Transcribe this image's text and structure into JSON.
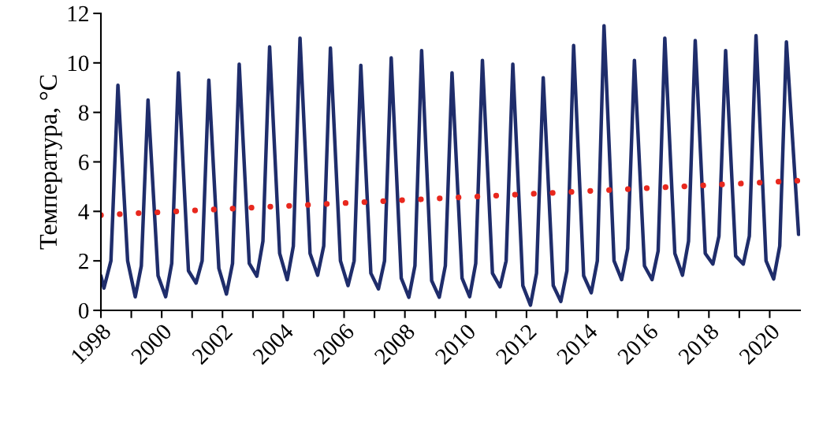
{
  "chart_data": {
    "type": "line",
    "ylabel": "Температура, °C",
    "xlim": [
      1998,
      2021
    ],
    "ylim": [
      0,
      12
    ],
    "xticks": [
      1998,
      {
        "value": 1999,
        "label": null
      },
      2000,
      {
        "value": 2001,
        "label": null
      },
      2002,
      {
        "value": 2003,
        "label": null
      },
      2004,
      {
        "value": 2005,
        "label": null
      },
      2006,
      {
        "value": 2007,
        "label": null
      },
      2008,
      {
        "value": 2009,
        "label": null
      },
      2010,
      {
        "value": 2011,
        "label": null
      },
      2012,
      {
        "value": 2013,
        "label": null
      },
      2014,
      {
        "value": 2015,
        "label": null
      },
      2016,
      {
        "value": 2017,
        "label": null
      },
      2018,
      {
        "value": 2019,
        "label": null
      },
      2020
    ],
    "yticks": [
      0,
      2,
      4,
      6,
      8,
      10,
      12
    ],
    "series": [
      {
        "color": "#1f2d6b",
        "line_style": "solid",
        "x": [
          1998.0,
          1998.1,
          1998.33,
          1998.56,
          1998.88,
          1999.13,
          1999.33,
          1999.55,
          1999.88,
          2000.13,
          2000.33,
          2000.55,
          2000.88,
          2001.13,
          2001.33,
          2001.55,
          2001.88,
          2002.13,
          2002.33,
          2002.55,
          2002.88,
          2003.13,
          2003.33,
          2003.55,
          2003.88,
          2004.13,
          2004.33,
          2004.55,
          2004.88,
          2005.13,
          2005.33,
          2005.55,
          2005.88,
          2006.13,
          2006.33,
          2006.55,
          2006.88,
          2007.13,
          2007.33,
          2007.55,
          2007.88,
          2008.13,
          2008.33,
          2008.55,
          2008.88,
          2009.13,
          2009.33,
          2009.55,
          2009.88,
          2010.13,
          2010.33,
          2010.55,
          2010.88,
          2011.13,
          2011.33,
          2011.55,
          2011.88,
          2012.13,
          2012.33,
          2012.55,
          2012.88,
          2013.13,
          2013.33,
          2013.55,
          2013.88,
          2014.13,
          2014.33,
          2014.55,
          2014.88,
          2015.13,
          2015.33,
          2015.55,
          2015.88,
          2016.13,
          2016.33,
          2016.55,
          2016.88,
          2017.13,
          2017.33,
          2017.55,
          2017.88,
          2018.13,
          2018.33,
          2018.55,
          2018.88,
          2019.13,
          2019.33,
          2019.55,
          2019.88,
          2020.13,
          2020.33,
          2020.55,
          2020.95
        ],
        "values": [
          1.4,
          0.9,
          2.0,
          9.1,
          2.0,
          0.55,
          1.8,
          8.5,
          1.4,
          0.55,
          1.9,
          9.6,
          1.6,
          1.1,
          2.0,
          9.3,
          1.7,
          0.66,
          1.9,
          9.95,
          1.9,
          1.38,
          2.8,
          10.65,
          2.3,
          1.24,
          2.6,
          11.0,
          2.3,
          1.42,
          2.6,
          10.6,
          2.0,
          1.0,
          2.0,
          9.9,
          1.5,
          0.87,
          2.0,
          10.2,
          1.3,
          0.53,
          1.8,
          10.5,
          1.2,
          0.53,
          1.8,
          9.6,
          1.3,
          0.55,
          1.9,
          10.1,
          1.5,
          0.95,
          2.0,
          9.95,
          1.0,
          0.21,
          1.5,
          9.4,
          1.0,
          0.36,
          1.6,
          10.7,
          1.4,
          0.71,
          2.0,
          11.5,
          2.0,
          1.24,
          2.5,
          10.1,
          1.8,
          1.24,
          2.4,
          11.0,
          2.3,
          1.42,
          2.8,
          10.9,
          2.3,
          1.87,
          3.0,
          10.5,
          2.2,
          1.87,
          3.0,
          11.1,
          2.0,
          1.27,
          2.6,
          10.85,
          3.07
        ]
      },
      {
        "color": "#e8281e",
        "line_style": "dotted",
        "x": [
          1998.0,
          2020.95
        ],
        "values": [
          3.85,
          5.24
        ]
      }
    ]
  }
}
